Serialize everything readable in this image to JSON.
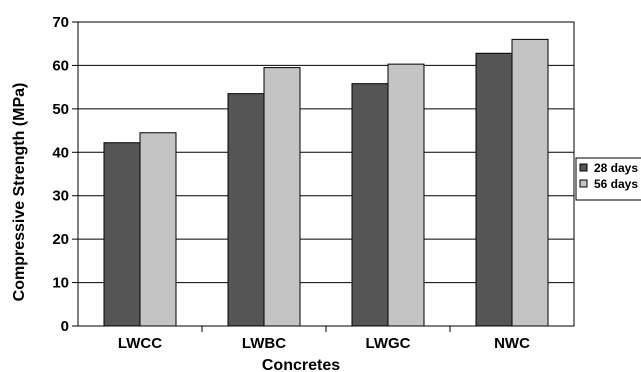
{
  "chart_data": {
    "type": "bar",
    "title": "",
    "xlabel": "Concretes",
    "ylabel": "Compressive Strength (MPa)",
    "ylim": [
      0,
      70
    ],
    "yticks": [
      0,
      10,
      20,
      30,
      40,
      50,
      60,
      70
    ],
    "grid": true,
    "legend_position": "right",
    "categories": [
      "LWCC",
      "LWBC",
      "LWGC",
      "NWC"
    ],
    "series": [
      {
        "name": "28 days",
        "color": "#555555",
        "values": [
          42.2,
          53.5,
          55.8,
          62.8
        ]
      },
      {
        "name": "56 days",
        "color": "#c4c4c4",
        "values": [
          44.5,
          59.5,
          60.3,
          66.0
        ]
      }
    ]
  }
}
